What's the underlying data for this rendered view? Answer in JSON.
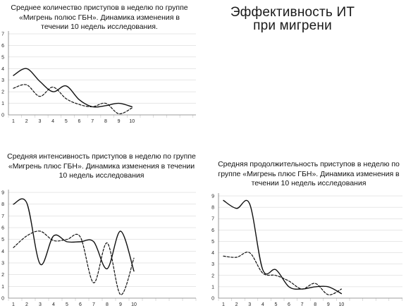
{
  "header": {
    "title": "Эффективность ИТ\nпри мигрени"
  },
  "chart_data": [
    {
      "type": "line",
      "title": "Среднее количество приступов в неделю по группе «Мигрень полюс ГБН». Динамика изменения в течении 10 недель исследования.",
      "x": [
        1,
        2,
        3,
        4,
        5,
        6,
        7,
        8,
        9,
        10
      ],
      "xticks": [
        1,
        2,
        3,
        4,
        5,
        6,
        7,
        8,
        9,
        10
      ],
      "yticks": [
        0,
        1,
        2,
        3,
        4,
        5,
        6,
        7
      ],
      "ylim": [
        0,
        7
      ],
      "series": [
        {
          "style": "solid",
          "values": [
            3.4,
            4.0,
            2.9,
            2.0,
            2.5,
            1.3,
            0.7,
            0.8,
            1.0,
            0.7
          ]
        },
        {
          "style": "dashed",
          "values": [
            2.3,
            2.6,
            1.6,
            2.4,
            1.4,
            0.9,
            0.7,
            1.0,
            0.1,
            0.6
          ]
        }
      ]
    },
    {
      "type": "line",
      "title": "Средняя интенсивность приступов в неделю по группе «Мигрень плюс ГБН». Динамика изменения в течении 10 недель исследования",
      "x": [
        1,
        2,
        3,
        4,
        5,
        6,
        7,
        8,
        9,
        10
      ],
      "xticks": [
        1,
        2,
        3,
        4,
        5,
        6,
        7,
        8,
        9,
        10
      ],
      "yticks": [
        0,
        1,
        2,
        3,
        4,
        5,
        6,
        7,
        8,
        9
      ],
      "ylim": [
        0,
        9
      ],
      "series": [
        {
          "style": "solid",
          "values": [
            8.0,
            8.1,
            2.9,
            5.3,
            4.8,
            4.8,
            4.8,
            2.5,
            5.7,
            2.3
          ]
        },
        {
          "style": "dashed",
          "values": [
            4.3,
            5.3,
            5.7,
            4.9,
            5.0,
            5.2,
            1.3,
            4.7,
            0.3,
            3.4
          ]
        }
      ]
    },
    {
      "type": "line",
      "title": "Средняя продолжительность приступов в неделю по группе «Мигрень плюс ГБН». Динамика изменения в течении 10 недель исследования",
      "x": [
        1,
        2,
        3,
        4,
        5,
        6,
        7,
        8,
        9,
        10
      ],
      "xticks": [
        1,
        2,
        3,
        4,
        5,
        6,
        7,
        8,
        9,
        10
      ],
      "yticks": [
        0,
        1,
        2,
        3,
        4,
        5,
        6,
        7,
        8,
        9
      ],
      "ylim": [
        0,
        9
      ],
      "series": [
        {
          "style": "solid",
          "values": [
            8.6,
            7.9,
            8.3,
            2.5,
            2.5,
            1.0,
            0.8,
            1.0,
            1.0,
            0.4
          ]
        },
        {
          "style": "dashed",
          "values": [
            3.7,
            3.6,
            4.0,
            2.2,
            2.0,
            1.5,
            0.8,
            1.3,
            0.3,
            0.8
          ]
        }
      ]
    }
  ]
}
